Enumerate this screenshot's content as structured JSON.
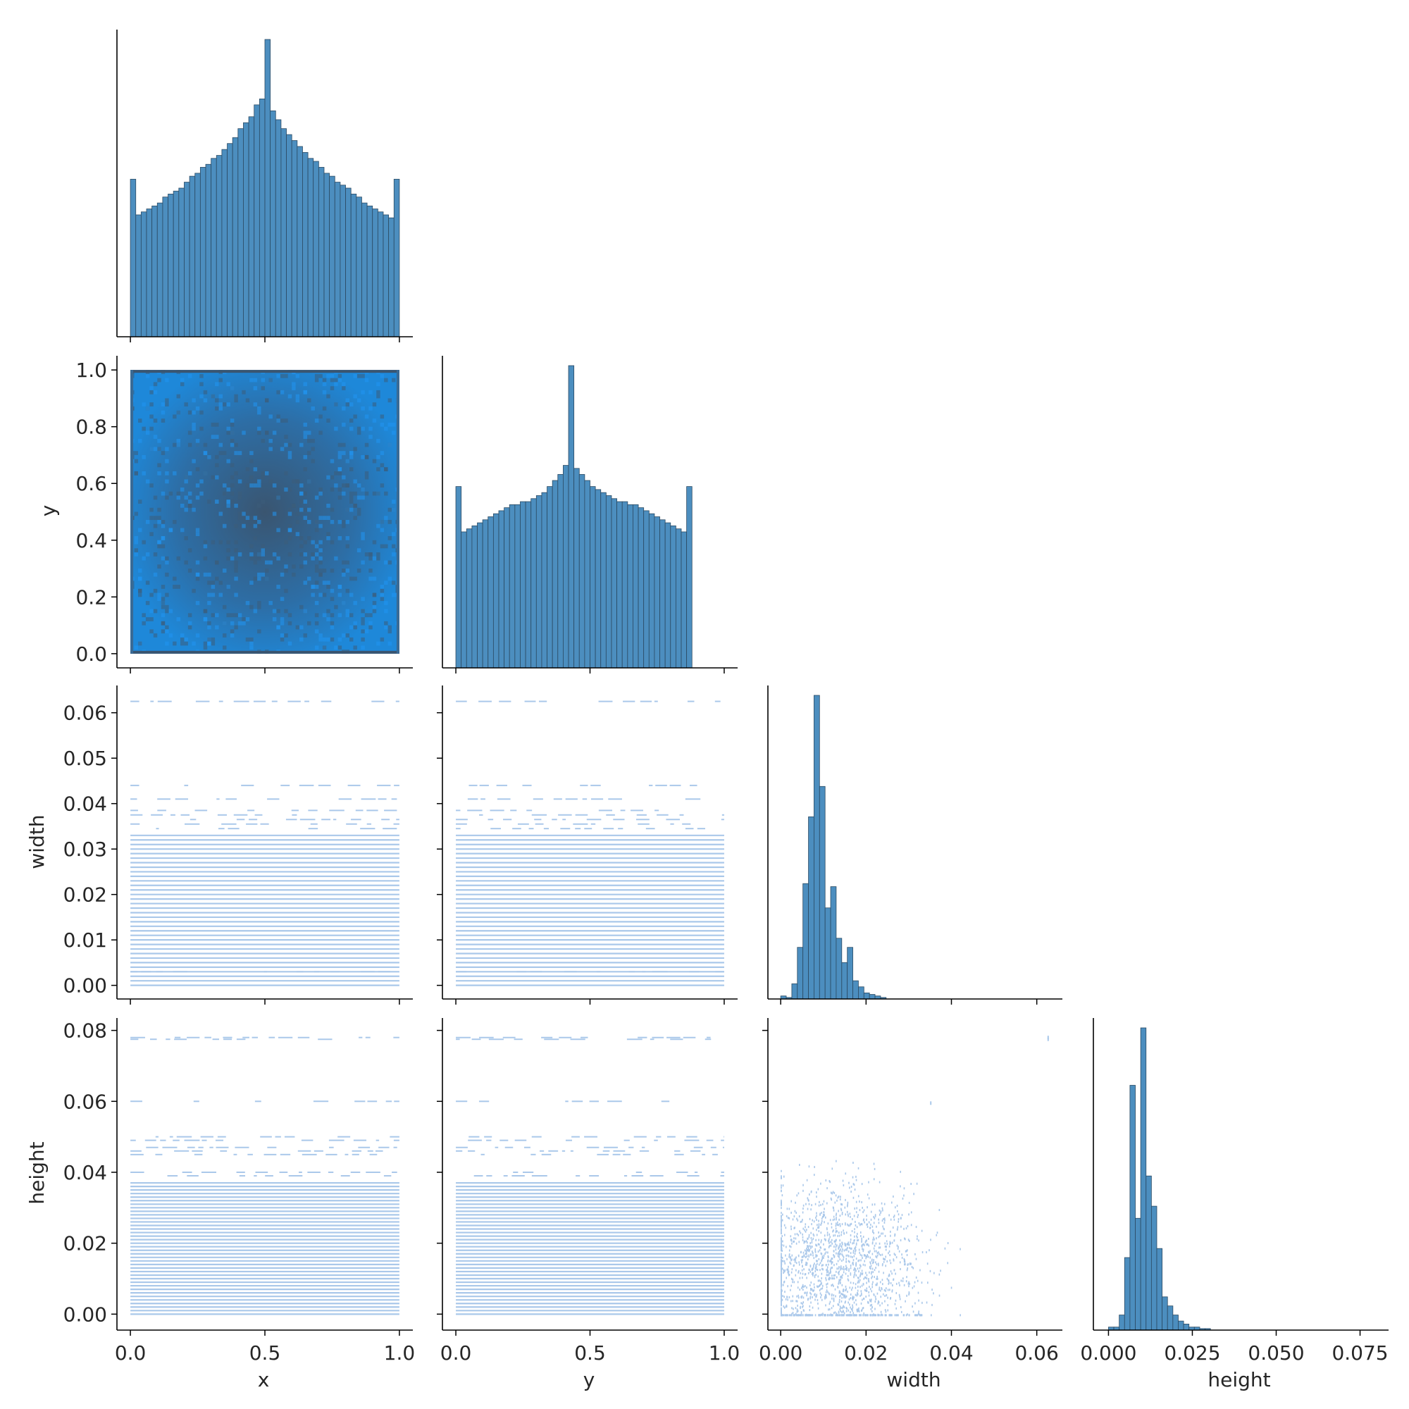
{
  "figure": {
    "type": "pairplot_corner",
    "variables": [
      "x",
      "y",
      "width",
      "height"
    ],
    "colors": {
      "hist_bar": "#4c8ebf",
      "hist_edge": "#2b4a63",
      "density_low": "#1e88d9",
      "density_high": "#3a5570",
      "sparse_bin": "#aac8ea",
      "axis": "#000000"
    }
  },
  "chart_data": [
    {
      "type": "histogram",
      "panel": "x-diag",
      "variable": "x",
      "xlabel": "",
      "ylabel": "",
      "xlim": [
        -0.05,
        1.05
      ],
      "bin_edges_start": 0.0,
      "bin_width": 0.02,
      "values": [
        53,
        41,
        42,
        43,
        44,
        45,
        47,
        48,
        49,
        50,
        52,
        54,
        55,
        57,
        58,
        60,
        61,
        63,
        65,
        67,
        70,
        72,
        74,
        78,
        80,
        100,
        76,
        73,
        70,
        68,
        66,
        64,
        62,
        60,
        59,
        57,
        55,
        54,
        52,
        51,
        50,
        48,
        47,
        45,
        44,
        43,
        42,
        41,
        40,
        53
      ],
      "xticks": [
        0.0,
        0.5,
        1.0
      ]
    },
    {
      "type": "heatmap",
      "panel": "x-vs-y",
      "xvar": "x",
      "yvar": "y",
      "xlabel": "",
      "ylabel": "y",
      "xlim": [
        -0.05,
        1.05
      ],
      "ylim": [
        -0.05,
        1.05
      ],
      "description_values": {
        "center": [
          0.5,
          0.5
        ],
        "peak": "center",
        "border_edges_dense": true
      },
      "yticks": [
        0.0,
        0.2,
        0.4,
        0.6,
        0.8,
        1.0
      ],
      "ytick_labels": [
        "0.0",
        "0.2",
        "0.4",
        "0.6",
        "0.8",
        "1.0"
      ]
    },
    {
      "type": "histogram",
      "panel": "y-diag",
      "variable": "y",
      "xlim": [
        -0.05,
        1.05
      ],
      "bin_edges_start": 0.0,
      "bin_width": 0.02,
      "values": [
        60,
        45,
        46,
        47,
        48,
        49,
        50,
        51,
        52,
        53,
        54,
        54,
        55,
        55,
        56,
        57,
        58,
        60,
        62,
        64,
        67,
        100,
        66,
        64,
        62,
        60,
        59,
        58,
        57,
        56,
        55,
        55,
        54,
        54,
        53,
        52,
        51,
        50,
        49,
        48,
        47,
        46,
        45,
        60
      ],
      "xticks": [
        0.0,
        0.5,
        1.0
      ]
    },
    {
      "type": "heatmap",
      "panel": "x-vs-width",
      "xvar": "x",
      "yvar": "width",
      "ylabel": "width",
      "xlim": [
        -0.05,
        1.05
      ],
      "ylim": [
        -0.003,
        0.066
      ],
      "yticks": [
        0.0,
        0.01,
        0.02,
        0.03,
        0.04,
        0.05,
        0.06
      ],
      "ytick_labels": [
        "0.00",
        "0.01",
        "0.02",
        "0.03",
        "0.04",
        "0.05",
        "0.06"
      ]
    },
    {
      "type": "heatmap",
      "panel": "y-vs-width",
      "xvar": "y",
      "yvar": "width",
      "xlim": [
        -0.05,
        1.05
      ],
      "ylim": [
        -0.003,
        0.066
      ]
    },
    {
      "type": "histogram",
      "panel": "width-diag",
      "variable": "width",
      "xlim": [
        -0.003,
        0.066
      ],
      "bin_edges_start": 0.0,
      "bin_width": 0.0013,
      "values": [
        1,
        0.5,
        5,
        17,
        38,
        60,
        100,
        70,
        30,
        37,
        20,
        12,
        17,
        6,
        4,
        2,
        1.5,
        1,
        0.5
      ],
      "xticks": [
        0.0,
        0.02,
        0.04,
        0.06
      ]
    },
    {
      "type": "heatmap",
      "panel": "x-vs-height",
      "xvar": "x",
      "yvar": "height",
      "xlabel": "x",
      "ylabel": "height",
      "xlim": [
        -0.05,
        1.05
      ],
      "ylim": [
        -0.0045,
        0.0835
      ],
      "yticks": [
        0.0,
        0.02,
        0.04,
        0.06,
        0.08
      ],
      "ytick_labels": [
        "0.00",
        "0.02",
        "0.04",
        "0.06",
        "0.08"
      ],
      "xticks": [
        0.0,
        0.5,
        1.0
      ],
      "xtick_labels": [
        "0.0",
        "0.5",
        "1.0"
      ]
    },
    {
      "type": "heatmap",
      "panel": "y-vs-height",
      "xvar": "y",
      "yvar": "height",
      "xlabel": "y",
      "xlim": [
        -0.05,
        1.05
      ],
      "ylim": [
        -0.0045,
        0.0835
      ],
      "xticks": [
        0.0,
        0.5,
        1.0
      ],
      "xtick_labels": [
        "0.0",
        "0.5",
        "1.0"
      ]
    },
    {
      "type": "heatmap",
      "panel": "width-vs-height",
      "xvar": "width",
      "yvar": "height",
      "xlabel": "width",
      "xlim": [
        -0.003,
        0.066
      ],
      "ylim": [
        -0.0045,
        0.0835
      ],
      "xticks": [
        0.0,
        0.02,
        0.04,
        0.06
      ],
      "xtick_labels": [
        "0.00",
        "0.02",
        "0.04",
        "0.06"
      ]
    },
    {
      "type": "histogram",
      "panel": "height-diag",
      "variable": "height",
      "xlabel": "height",
      "xlim": [
        -0.0045,
        0.0835
      ],
      "bin_edges_start": 0.0,
      "bin_width": 0.0016,
      "values": [
        1,
        1,
        5,
        24,
        81,
        37,
        100,
        51,
        41,
        27,
        11,
        8,
        5,
        3,
        2,
        1,
        1,
        0.5,
        0.5
      ],
      "xticks": [
        0.0,
        0.025,
        0.05,
        0.075
      ],
      "xtick_labels": [
        "0.000",
        "0.025",
        "0.050",
        "0.075"
      ]
    }
  ]
}
